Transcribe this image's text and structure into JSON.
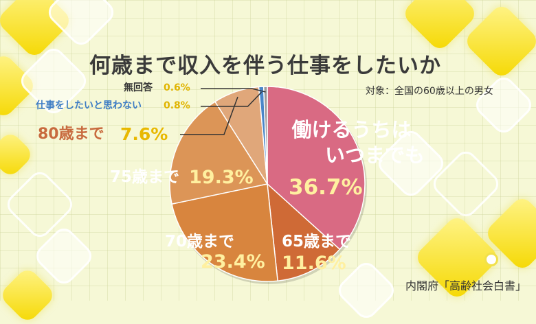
{
  "chart_data": {
    "type": "pie",
    "title": "何歳まで収入を伴う仕事をしたいか",
    "subtitle": "対象：全国の60歳以上の男女",
    "source": "内閣府「高齢社会白書」",
    "slices": [
      {
        "label": "働けるうちはいつまでも",
        "label_lines": [
          "働けるうちは",
          "いつまでも"
        ],
        "value": 36.7,
        "value_text": "36.7%",
        "color": "#d96a83"
      },
      {
        "label": "65歳まで",
        "value": 11.6,
        "value_text": "11.6%",
        "color": "#cf6a36"
      },
      {
        "label": "70歳まで",
        "value": 23.4,
        "value_text": "23.4%",
        "color": "#d8853e"
      },
      {
        "label": "75歳まで",
        "value": 19.3,
        "value_text": "19.3%",
        "color": "#dc9557"
      },
      {
        "label": "80歳まで",
        "value": 7.6,
        "value_text": "7.6%",
        "color": "#e0a77a"
      },
      {
        "label": "仕事をしたいと思わない",
        "value": 0.8,
        "value_text": "0.8%",
        "color": "#4a86c8"
      },
      {
        "label": "無回答",
        "value": 0.6,
        "value_text": "0.6%",
        "color": "#9b9b9b"
      }
    ]
  }
}
